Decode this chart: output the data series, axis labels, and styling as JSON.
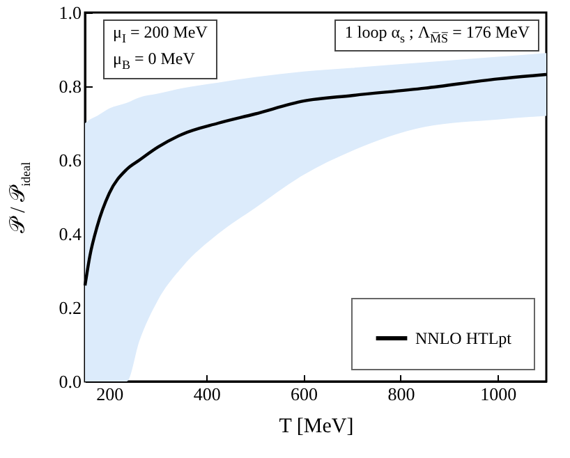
{
  "chart_data": {
    "type": "line",
    "xlabel": "T [MeV]",
    "ylabel": "𝒫 / 𝒫$_{ideal}$",
    "annotations": [
      "μ$_{I}$ = 200  MeV",
      "μ$_{B}$ = 0  MeV",
      "1 loop  α$_{s}$ ;  Λ$_{M̅S̅}$ = 176  MeV"
    ],
    "x": [
      150,
      160,
      175,
      200,
      236,
      262,
      300,
      350,
      424,
      500,
      600,
      700,
      850,
      1000,
      1100
    ],
    "series": [
      {
        "name": "NNLO HTLpt",
        "color": "#000000",
        "values": [
          0.26,
          0.34,
          0.42,
          0.51,
          0.575,
          0.6,
          0.635,
          0.67,
          0.7,
          0.725,
          0.76,
          0.775,
          0.795,
          0.82,
          0.832
        ],
        "lower": [
          0,
          0,
          0,
          0,
          0,
          0.11,
          0.22,
          0.31,
          0.4,
          0.47,
          0.56,
          0.625,
          0.69,
          0.71,
          0.72
        ],
        "upper": [
          0.7,
          0.71,
          0.72,
          0.74,
          0.755,
          0.77,
          0.78,
          0.795,
          0.81,
          0.825,
          0.84,
          0.85,
          0.865,
          0.88,
          0.89
        ]
      }
    ],
    "xlim": [
      150,
      1100
    ],
    "xticks": [
      200,
      400,
      600,
      800,
      1000
    ],
    "ylim": [
      0,
      1
    ],
    "yticks": [
      {
        "value": 0,
        "label": "0.0"
      },
      {
        "value": 0.2,
        "label": "0.2"
      },
      {
        "value": 0.4,
        "label": "0.4"
      },
      {
        "value": 0.6,
        "label": "0.6"
      },
      {
        "value": 0.8,
        "label": "0.8"
      },
      {
        "value": 1,
        "label": "1.0"
      }
    ],
    "grid": false,
    "legend": "bottom right",
    "marker": "none",
    "line_style": "solid"
  }
}
